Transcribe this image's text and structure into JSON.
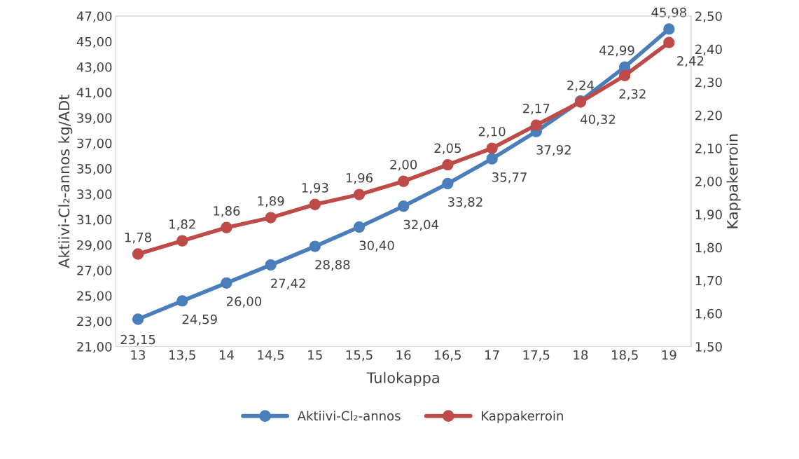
{
  "chart_data": {
    "type": "line",
    "xlabel": "Tulokappa",
    "ylabel": "Aktiivi-Cl₂-annos kg/ADt",
    "y2label": "Kappakerroin",
    "categories": [
      "13",
      "13,5",
      "14",
      "14,5",
      "15",
      "15,5",
      "16",
      "16,5",
      "17",
      "17,5",
      "18",
      "18,5",
      "19"
    ],
    "series": [
      {
        "name": "Aktiivi-Cl₂-annos",
        "color": "#4a7ebb",
        "values": [
          23.15,
          24.59,
          26.0,
          27.42,
          28.88,
          30.4,
          32.04,
          33.82,
          35.77,
          37.92,
          40.32,
          42.99,
          45.98
        ],
        "value_labels": [
          "23,15",
          "24,59",
          "26,00",
          "27,42",
          "28,88",
          "30,40",
          "32,04",
          "33,82",
          "35,77",
          "37,92",
          "40,32",
          "42,99",
          "45,98"
        ]
      },
      {
        "name": "Kappakerroin",
        "color": "#be4b48",
        "axis": "y2",
        "values": [
          1.78,
          1.82,
          1.86,
          1.89,
          1.93,
          1.96,
          2.0,
          2.05,
          2.1,
          2.17,
          2.24,
          2.32,
          2.42
        ],
        "value_labels": [
          "1,78",
          "1,82",
          "1,86",
          "1,89",
          "1,93",
          "1,96",
          "2,00",
          "2,05",
          "2,10",
          "2,17",
          "2,24",
          "2,32",
          "2,42"
        ]
      }
    ],
    "ylim": [
      21,
      47
    ],
    "yticks": [
      {
        "value": 21,
        "label": "21,00"
      },
      {
        "value": 23,
        "label": "23,00"
      },
      {
        "value": 25,
        "label": "25,00"
      },
      {
        "value": 27,
        "label": "27,00"
      },
      {
        "value": 29,
        "label": "29,00"
      },
      {
        "value": 31,
        "label": "31,00"
      },
      {
        "value": 33,
        "label": "33,00"
      },
      {
        "value": 35,
        "label": "35,00"
      },
      {
        "value": 37,
        "label": "37,00"
      },
      {
        "value": 39,
        "label": "39,00"
      },
      {
        "value": 41,
        "label": "41,00"
      },
      {
        "value": 43,
        "label": "43,00"
      },
      {
        "value": 45,
        "label": "45,00"
      },
      {
        "value": 47,
        "label": "47,00"
      }
    ],
    "y2lim": [
      1.5,
      2.5
    ],
    "y2ticks": [
      {
        "value": 1.5,
        "label": "1,50"
      },
      {
        "value": 1.6,
        "label": "1,60"
      },
      {
        "value": 1.7,
        "label": "1,70"
      },
      {
        "value": 1.8,
        "label": "1,80"
      },
      {
        "value": 1.9,
        "label": "1,90"
      },
      {
        "value": 2.0,
        "label": "2,00"
      },
      {
        "value": 2.1,
        "label": "2,10"
      },
      {
        "value": 2.2,
        "label": "2,20"
      },
      {
        "value": 2.3,
        "label": "2,30"
      },
      {
        "value": 2.4,
        "label": "2,40"
      },
      {
        "value": 2.5,
        "label": "2,50"
      }
    ],
    "marker": "circle",
    "line_style": "solid",
    "legend": "bottom",
    "grid": false
  }
}
